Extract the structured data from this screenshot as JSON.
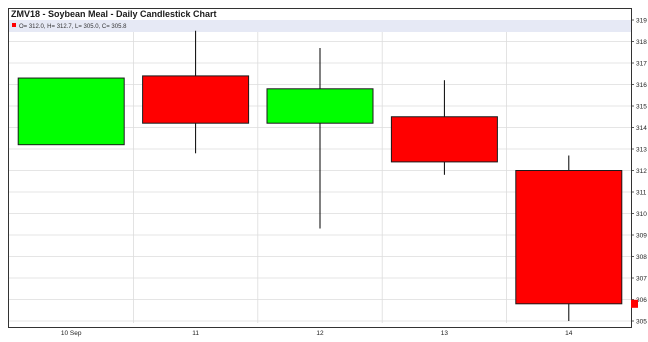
{
  "chart_data": {
    "type": "candlestick",
    "title": "ZMV18 - Soybean Meal - Daily Candlestick Chart",
    "legend_text": "O= 312.0, H= 312.7, L= 305.0, C= 305.8",
    "categories": [
      "10 Sep",
      "11",
      "12",
      "13",
      "14"
    ],
    "candles": [
      {
        "label": "10 Sep",
        "open": 313.2,
        "high": 316.3,
        "low": 313.2,
        "close": 316.3,
        "color": "#00ff00"
      },
      {
        "label": "11",
        "open": 316.4,
        "high": 318.5,
        "low": 312.8,
        "close": 314.2,
        "color": "#ff0000"
      },
      {
        "label": "12",
        "open": 314.2,
        "high": 317.7,
        "low": 309.3,
        "close": 315.8,
        "color": "#00ff00"
      },
      {
        "label": "13",
        "open": 314.5,
        "high": 316.2,
        "low": 311.8,
        "close": 312.4,
        "color": "#ff0000"
      },
      {
        "label": "14",
        "open": 312.0,
        "high": 312.7,
        "low": 305.0,
        "close": 305.8,
        "color": "#ff0000"
      }
    ],
    "y_ticks": [
      "319",
      "318",
      "317",
      "316",
      "315",
      "314",
      "313",
      "312",
      "311",
      "310",
      "309",
      "308",
      "307",
      "306",
      "305"
    ],
    "ylim": [
      305,
      319
    ],
    "y_axis_position": "right",
    "grid": true,
    "colors": {
      "up": "#00ff00",
      "down": "#ff0000",
      "wick": "#000000",
      "grid": "#dcdcdc",
      "title_bar": "#e6e9f5",
      "legend_swatch": "#ff0000",
      "last_price_tag": "#ff0000"
    }
  }
}
